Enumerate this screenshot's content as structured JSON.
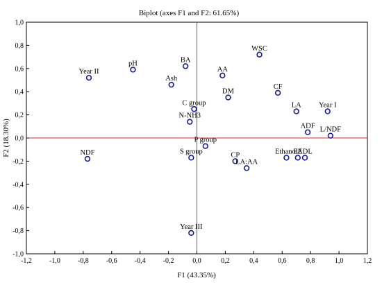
{
  "chart_data": {
    "type": "scatter",
    "title": "Biplot (axes F1 and F2: 61.65%)",
    "xlabel": "F1 (43.35%)",
    "ylabel": "F2 (18.30%)",
    "xlim": [
      -1.2,
      1.2
    ],
    "ylim": [
      -1.0,
      1.0
    ],
    "x_ticks": [
      "-1,2",
      "-1,0",
      "-0,8",
      "-0,6",
      "-0,4",
      "-0,2",
      "0,0",
      "0,2",
      "0,4",
      "0,6",
      "0,8",
      "1,0",
      "1,2"
    ],
    "y_ticks": [
      "1,0",
      "0,8",
      "0,6",
      "0,4",
      "0,2",
      "0,0",
      "-0,2",
      "-0,4",
      "-0,6",
      "-0,8",
      "-1,0"
    ],
    "x_tick_values": [
      -1.2,
      -1.0,
      -0.8,
      -0.6,
      -0.4,
      -0.2,
      0.0,
      0.2,
      0.4,
      0.6,
      0.8,
      1.0,
      1.2
    ],
    "y_tick_values": [
      1.0,
      0.8,
      0.6,
      0.4,
      0.2,
      0.0,
      -0.2,
      -0.4,
      -0.6,
      -0.8,
      -1.0
    ],
    "grid": false,
    "reference_lines": {
      "x": 0,
      "y": 0,
      "color": "#e0282a"
    },
    "marker_color": "#1a1aa0",
    "points": [
      {
        "label": "WSC",
        "x": 0.44,
        "y": 0.72
      },
      {
        "label": "BA",
        "x": -0.08,
        "y": 0.62
      },
      {
        "label": "pH",
        "x": -0.45,
        "y": 0.59
      },
      {
        "label": "Year II",
        "x": -0.76,
        "y": 0.52
      },
      {
        "label": "AA",
        "x": 0.18,
        "y": 0.54
      },
      {
        "label": "Ash",
        "x": -0.18,
        "y": 0.46
      },
      {
        "label": "CF",
        "x": 0.57,
        "y": 0.39
      },
      {
        "label": "DM",
        "x": 0.22,
        "y": 0.35
      },
      {
        "label": "C group",
        "x": -0.02,
        "y": 0.25
      },
      {
        "label": "LA",
        "x": 0.7,
        "y": 0.23
      },
      {
        "label": "Year I",
        "x": 0.92,
        "y": 0.23
      },
      {
        "label": "N-NH3",
        "x": -0.05,
        "y": 0.14
      },
      {
        "label": "ADF",
        "x": 0.78,
        "y": 0.05
      },
      {
        "label": "L/NDF",
        "x": 0.94,
        "y": 0.02
      },
      {
        "label": "P group",
        "x": 0.06,
        "y": -0.07
      },
      {
        "label": "NDF",
        "x": -0.77,
        "y": -0.18
      },
      {
        "label": "S group",
        "x": -0.04,
        "y": -0.17
      },
      {
        "label": "CP",
        "x": 0.27,
        "y": -0.2
      },
      {
        "label": "LA:AA",
        "x": 0.35,
        "y": -0.26
      },
      {
        "label": "Ethanol",
        "x": 0.63,
        "y": -0.17
      },
      {
        "label": "EE",
        "x": 0.71,
        "y": -0.17
      },
      {
        "label": "ADL",
        "x": 0.76,
        "y": -0.17
      },
      {
        "label": "Year III",
        "x": -0.04,
        "y": -0.82
      }
    ]
  }
}
